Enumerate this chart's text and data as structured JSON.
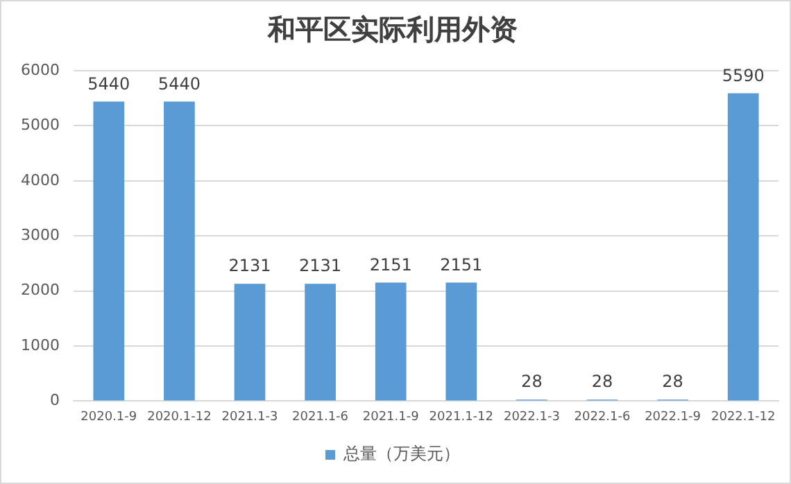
{
  "chart_data": {
    "type": "bar",
    "title": "和平区实际利用外资",
    "categories": [
      "2020.1-9",
      "2020.1-12",
      "2021.1-3",
      "2021.1-6",
      "2021.1-9",
      "2021.1-12",
      "2022.1-3",
      "2022.1-6",
      "2022.1-9",
      "2022.1-12"
    ],
    "series": [
      {
        "name": "总量（万美元）",
        "color": "#5b9bd5",
        "values": [
          5440,
          5440,
          2131,
          2131,
          2151,
          2151,
          28,
          28,
          28,
          5590
        ]
      }
    ],
    "ylim": [
      0,
      6000
    ],
    "yticks": [
      0,
      1000,
      2000,
      3000,
      4000,
      5000,
      6000
    ],
    "grid": "y",
    "legend": "bottom",
    "data_labels": true
  }
}
